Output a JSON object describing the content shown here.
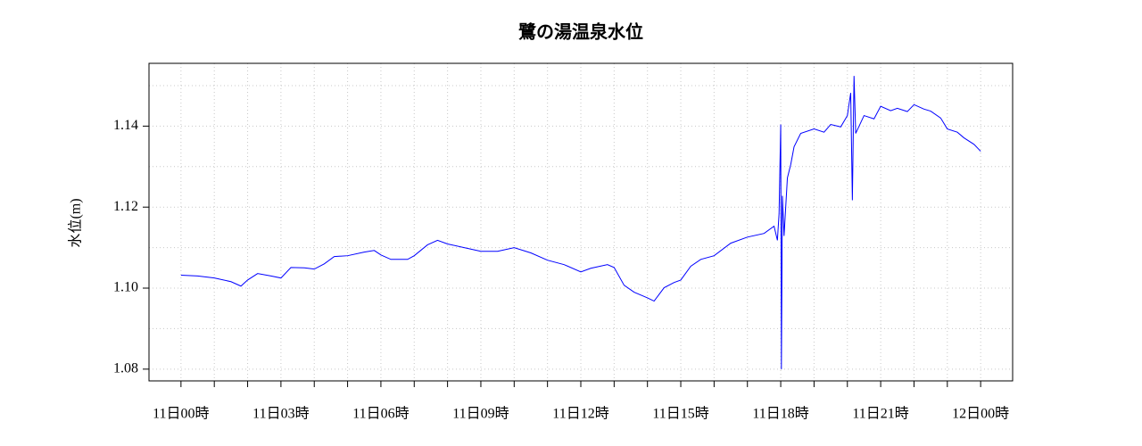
{
  "chart_data": {
    "type": "line",
    "title": "鷺の湯温泉水位",
    "y_label": "水位(m)",
    "x": [
      0,
      0.5,
      1.0,
      1.5,
      1.8,
      2.0,
      2.3,
      2.7,
      3.0,
      3.3,
      3.7,
      4.0,
      4.3,
      4.6,
      5.0,
      5.5,
      5.8,
      6.0,
      6.3,
      6.8,
      7.0,
      7.4,
      7.7,
      8.0,
      8.5,
      9.0,
      9.5,
      10.0,
      10.5,
      11.0,
      11.5,
      12.0,
      12.3,
      12.8,
      13.0,
      13.3,
      13.6,
      14.0,
      14.2,
      14.5,
      14.8,
      15.0,
      15.3,
      15.6,
      16.0,
      16.5,
      17.0,
      17.5,
      17.8,
      17.9,
      17.95,
      18.0,
      18.02,
      18.05,
      18.1,
      18.2,
      18.3,
      18.4,
      18.6,
      19.0,
      19.3,
      19.5,
      19.8,
      20.0,
      20.1,
      20.15,
      20.2,
      20.25,
      20.5,
      20.8,
      21.0,
      21.3,
      21.5,
      21.8,
      22.0,
      22.3,
      22.5,
      22.8,
      23.0,
      23.3,
      23.5,
      23.8,
      24.0
    ],
    "series": [
      {
        "name": "水位",
        "color": "#0000ff",
        "values": [
          1.1032,
          1.103,
          1.1025,
          1.1016,
          1.1005,
          1.102,
          1.1036,
          1.103,
          1.1025,
          1.1051,
          1.105,
          1.1047,
          1.106,
          1.1078,
          1.108,
          1.1089,
          1.1093,
          1.1082,
          1.1071,
          1.1071,
          1.108,
          1.1107,
          1.1118,
          1.1109,
          1.11,
          1.1091,
          1.1091,
          1.11,
          1.1087,
          1.1069,
          1.1058,
          1.104,
          1.1049,
          1.1058,
          1.1051,
          1.1007,
          1.099,
          1.0976,
          1.0968,
          1.1001,
          1.1014,
          1.102,
          1.1054,
          1.1071,
          1.108,
          1.1111,
          1.1126,
          1.1135,
          1.1153,
          1.1118,
          1.1184,
          1.1404,
          1.08,
          1.1228,
          1.1129,
          1.1272,
          1.1305,
          1.1349,
          1.1382,
          1.1393,
          1.1385,
          1.1404,
          1.1398,
          1.1426,
          1.1482,
          1.1217,
          1.1524,
          1.1382,
          1.1426,
          1.1418,
          1.1449,
          1.1438,
          1.1444,
          1.1436,
          1.1453,
          1.1442,
          1.1437,
          1.142,
          1.1393,
          1.1385,
          1.1371,
          1.1355,
          1.1338
        ]
      }
    ],
    "xlim": [
      -0.96,
      24.96
    ],
    "ylim": [
      1.0771,
      1.1555
    ],
    "xticks": [
      {
        "value": 0,
        "label": "11日00時"
      },
      {
        "value": 3,
        "label": "11日03時"
      },
      {
        "value": 6,
        "label": "11日06時"
      },
      {
        "value": 9,
        "label": "11日09時"
      },
      {
        "value": 12,
        "label": "11日12時"
      },
      {
        "value": 15,
        "label": "11日15時"
      },
      {
        "value": 18,
        "label": "11日18時"
      },
      {
        "value": 21,
        "label": "11日21時"
      },
      {
        "value": 24,
        "label": "12日00時"
      }
    ],
    "x_minor_ticks": [
      0,
      1,
      2,
      3,
      4,
      5,
      6,
      7,
      8,
      9,
      10,
      11,
      12,
      13,
      14,
      15,
      16,
      17,
      18,
      19,
      20,
      21,
      22,
      23,
      24
    ],
    "yticks": [
      1.08,
      {
        "value": 1.1,
        "label": "1.10"
      },
      1.12,
      1.14
    ],
    "y_grid": [
      1.08,
      1.09,
      1.1,
      1.11,
      1.12,
      1.13,
      1.14,
      1.15
    ],
    "grid": true
  }
}
